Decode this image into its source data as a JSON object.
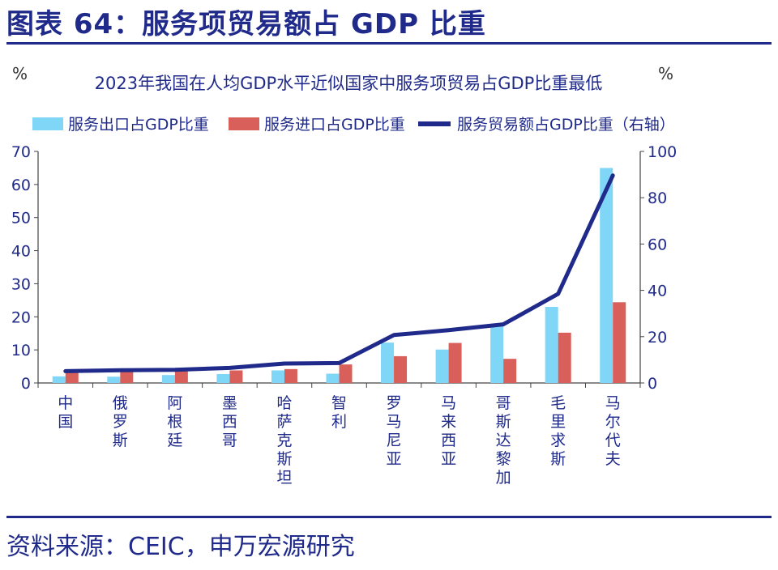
{
  "header": {
    "title": "图表 64：服务项贸易额占 GDP 比重",
    "source": "资料来源：CEIC，申万宏源研究"
  },
  "colors": {
    "export": "#7fd6f7",
    "import": "#d9605a",
    "total": "#1f2a8a",
    "title_text": "#1f2a8a",
    "axis": "#444444"
  },
  "chart_data": {
    "type": "bar",
    "title": "2023年我国在人均GDP水平近似国家中服务项贸易占GDP比重最低",
    "left_unit": "%",
    "right_unit": "%",
    "categories": [
      "中国",
      "俄罗斯",
      "阿根廷",
      "墨西哥",
      "哈萨克斯坦",
      "智利",
      "罗马尼亚",
      "马来西亚",
      "哥斯达黎加",
      "毛里求斯",
      "马尔代夫"
    ],
    "series": [
      {
        "name": "服务出口占GDP比重",
        "kind": "bar",
        "axis": "left",
        "values": [
          2.0,
          1.9,
          2.4,
          2.7,
          3.8,
          2.8,
          12.2,
          10.1,
          17.9,
          23.0,
          65.0
        ]
      },
      {
        "name": "服务进口占GDP比重",
        "kind": "bar",
        "axis": "left",
        "values": [
          3.1,
          3.4,
          3.7,
          3.8,
          4.2,
          5.6,
          8.1,
          12.1,
          7.3,
          15.2,
          24.4
        ]
      },
      {
        "name": "服务贸易额占GDP比重（右轴）",
        "kind": "line",
        "axis": "right",
        "values": [
          5.1,
          5.5,
          5.7,
          6.5,
          8.4,
          8.6,
          20.7,
          22.8,
          25.3,
          38.5,
          89.6
        ]
      }
    ],
    "ylim_left": [
      0,
      70
    ],
    "yticks_left": [
      0,
      10,
      20,
      30,
      40,
      50,
      60,
      70
    ],
    "ylim_right": [
      0,
      100
    ],
    "yticks_right": [
      0,
      20,
      40,
      60,
      80,
      100
    ],
    "grid": false,
    "legend": "top"
  }
}
